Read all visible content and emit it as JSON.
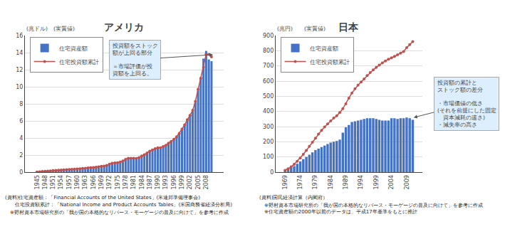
{
  "chart_data": [
    {
      "type": "bar",
      "title": "アメリカ",
      "ylabel": "(兆ドル)",
      "subtitle": "(実質値)",
      "categories": [
        "1945",
        null,
        null,
        "1948",
        null,
        null,
        "1951",
        null,
        null,
        "1954",
        null,
        null,
        "1957",
        null,
        null,
        "1960",
        null,
        null,
        "1963",
        null,
        null,
        "1966",
        null,
        null,
        "1969",
        null,
        null,
        "1972",
        null,
        null,
        "1975",
        null,
        null,
        "1978",
        null,
        null,
        "1981",
        null,
        null,
        "1984",
        null,
        null,
        "1987",
        null,
        null,
        "1990",
        null,
        null,
        "1993",
        null,
        null,
        "1996",
        null,
        null,
        "1999",
        null,
        null,
        "2002",
        null,
        null,
        "2005",
        null,
        null,
        "2008",
        null,
        null
      ],
      "series": [
        {
          "name": "住宅資産額",
          "type": "bar",
          "color": "#4472C4",
          "values": [
            0.05,
            0.07,
            0.1,
            0.12,
            0.13,
            0.17,
            0.2,
            0.22,
            0.24,
            0.26,
            0.3,
            0.33,
            0.35,
            0.37,
            0.4,
            0.42,
            0.44,
            0.47,
            0.5,
            0.54,
            0.58,
            0.6,
            0.63,
            0.7,
            0.76,
            0.78,
            0.88,
            1.0,
            1.1,
            1.1,
            1.1,
            1.2,
            1.35,
            1.55,
            1.65,
            1.6,
            1.6,
            1.55,
            1.65,
            1.85,
            2.0,
            2.2,
            2.4,
            2.55,
            2.7,
            2.8,
            2.8,
            2.95,
            3.1,
            3.35,
            3.55,
            3.8,
            4.1,
            4.5,
            5.0,
            5.5,
            6.1,
            6.6,
            7.2,
            8.2,
            9.6,
            11.0,
            13.3,
            14.2,
            13.2,
            13.0
          ]
        },
        {
          "name": "住宅投資額累計",
          "type": "line",
          "color": "#C0504D",
          "marker": "circle",
          "values": [
            0.03,
            0.05,
            0.08,
            0.1,
            0.12,
            0.15,
            0.18,
            0.2,
            0.22,
            0.24,
            0.27,
            0.29,
            0.31,
            0.33,
            0.36,
            0.38,
            0.4,
            0.43,
            0.46,
            0.49,
            0.53,
            0.55,
            0.58,
            0.63,
            0.68,
            0.7,
            0.8,
            0.93,
            1.04,
            1.08,
            1.1,
            1.18,
            1.32,
            1.5,
            1.62,
            1.62,
            1.63,
            1.6,
            1.7,
            1.9,
            2.05,
            2.25,
            2.45,
            2.6,
            2.75,
            2.85,
            2.85,
            3.0,
            3.15,
            3.4,
            3.6,
            3.85,
            4.15,
            4.55,
            5.05,
            5.55,
            6.15,
            6.65,
            7.25,
            8.3,
            9.7,
            11.0,
            12.3,
            13.8,
            13.8,
            13.5
          ]
        }
      ],
      "ylim": [
        0,
        16
      ],
      "yticks": [
        0,
        2,
        4,
        6,
        8,
        10,
        12,
        14,
        16
      ],
      "grid": true,
      "legend": "upper left",
      "annotations": [
        "投資額をストック\n額が上回る部分\n\n＝市場評価が投\n資額を上回る。"
      ],
      "notes": [
        "(資料)住宅資産額：「Financial Accounts of the United States」(米連邦準備理事会)",
        "　　住宅投資額累計：「National Income and Product Accounts Tables」(米国商務省経済分析局)",
        "　※野村資本市場研究所の「我が国の本格的なリバース・モーゲージの普及に向けて」を参考に作成"
      ]
    },
    {
      "type": "bar",
      "title": "日本",
      "ylabel": "(兆円)",
      "subtitle": "(実質値)",
      "categories": [
        "1969",
        null,
        null,
        null,
        null,
        "1974",
        null,
        null,
        null,
        null,
        "1979",
        null,
        null,
        null,
        null,
        "1984",
        null,
        null,
        null,
        null,
        "1989",
        null,
        null,
        null,
        null,
        "1994",
        null,
        null,
        null,
        null,
        "1999",
        null,
        null,
        null,
        null,
        "2004",
        null,
        null,
        null,
        null,
        "2009",
        null,
        null
      ],
      "series": [
        {
          "name": "住宅資産額",
          "type": "bar",
          "color": "#4472C4",
          "values": [
            10,
            18,
            28,
            40,
            55,
            70,
            85,
            100,
            115,
            130,
            145,
            155,
            165,
            175,
            185,
            195,
            200,
            205,
            215,
            260,
            295,
            310,
            330,
            335,
            340,
            345,
            350,
            355,
            355,
            355,
            350,
            345,
            340,
            340,
            340,
            355,
            355,
            350,
            355,
            355,
            360,
            355,
            345
          ]
        },
        {
          "name": "住宅投資額累計",
          "type": "line",
          "color": "#C0504D",
          "marker": "circle",
          "values": [
            12,
            22,
            35,
            52,
            72,
            93,
            117,
            143,
            170,
            197,
            224,
            251,
            275,
            298,
            318,
            337,
            356,
            372,
            392,
            418,
            450,
            488,
            522,
            550,
            573,
            594,
            614,
            636,
            656,
            674,
            690,
            706,
            720,
            733,
            744,
            754,
            763,
            773,
            784,
            795,
            820,
            840,
            860
          ]
        }
      ],
      "ylim": [
        0,
        900
      ],
      "yticks": [
        0,
        100,
        200,
        300,
        400,
        500,
        600,
        700,
        800,
        900
      ],
      "grid": true,
      "legend": "upper left",
      "annotations": [
        "投資額の累計と\nストック額の差分\n\n・市場価値の低さ\n(それを前提にした固定\n　資本減耗の速さ)\n・減失率の高さ"
      ],
      "notes": [
        "(資料)国民経済計算（内閣府）",
        "　※野村資本市場研究所の「我が国の本格的なリバース・モーゲージの普及に向けて」を参考に作成",
        "　※住宅資産額の2000年以前のデータは、平成17年基準をもとに推計"
      ]
    }
  ]
}
